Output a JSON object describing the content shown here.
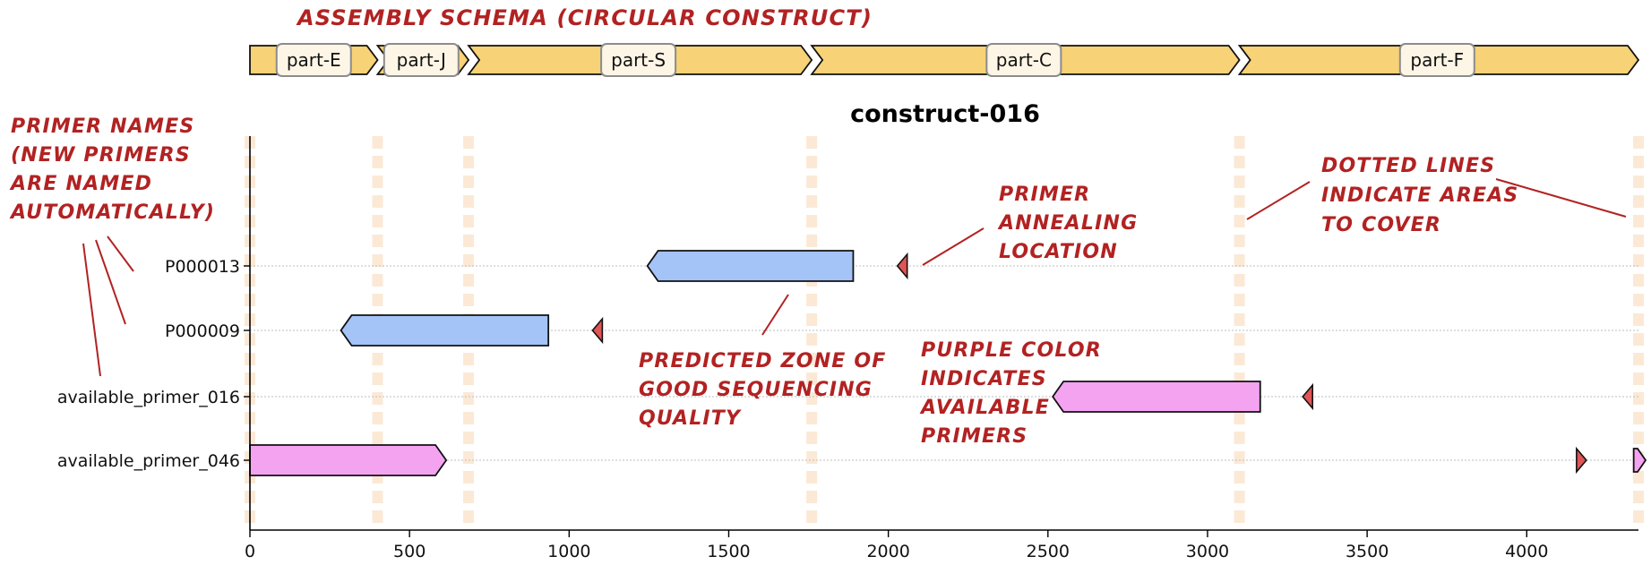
{
  "schema_title": "ASSEMBLY SCHEMA (CIRCULAR CONSTRUCT)",
  "colors": {
    "part_fill": "#f7d276",
    "zone_fill": "#a4c3f7",
    "available_fill": "#f4a3f1",
    "annealing_fill": "#e05555",
    "annotation": "#b22222",
    "coverage_line": "#fbe9d6"
  },
  "parts": [
    {
      "name": "part-E",
      "start": 0,
      "end": 400
    },
    {
      "name": "part-J",
      "start": 400,
      "end": 685
    },
    {
      "name": "part-S",
      "start": 685,
      "end": 1760
    },
    {
      "name": "part-C",
      "start": 1760,
      "end": 3100
    },
    {
      "name": "part-F",
      "start": 3100,
      "end": 4350
    }
  ],
  "chart_data": {
    "type": "bar",
    "title": "construct-016",
    "xlim": [
      0,
      4350
    ],
    "x_ticks": [
      0,
      500,
      1000,
      1500,
      2000,
      2500,
      3000,
      3500,
      4000
    ],
    "categories": [
      "P000013",
      "P000009",
      "available_primer_016",
      "available_primer_046"
    ],
    "coverage_boundaries": [
      0,
      400,
      685,
      1760,
      3100,
      4350
    ],
    "primers": [
      {
        "name": "P000013",
        "annealing": 2045,
        "direction": "reverse",
        "zone": [
          1245,
          1890
        ],
        "kind": "new"
      },
      {
        "name": "P000009",
        "annealing": 1090,
        "direction": "reverse",
        "zone": [
          285,
          935
        ],
        "kind": "new"
      },
      {
        "name": "available_primer_016",
        "annealing": 3315,
        "direction": "reverse",
        "zone": [
          2515,
          3165
        ],
        "kind": "available"
      },
      {
        "name": "available_primer_046",
        "annealing": 4170,
        "direction": "forward",
        "zone": [
          0,
          615
        ],
        "zone_wrap": [
          4335,
          4350
        ],
        "kind": "available"
      }
    ],
    "grid": false
  },
  "annotations": {
    "primer_names": [
      "PRIMER NAMES",
      "(NEW PRIMERS",
      "ARE NAMED",
      "AUTOMATICALLY)"
    ],
    "annealing": [
      "PRIMER",
      "ANNEALING",
      "LOCATION"
    ],
    "dotted": [
      "DOTTED LINES",
      "INDICATE AREAS",
      "TO COVER"
    ],
    "zone": [
      "PREDICTED ZONE OF",
      "GOOD SEQUENCING",
      "QUALITY"
    ],
    "purple": [
      "PURPLE COLOR",
      "INDICATES",
      "AVAILABLE",
      "PRIMERS"
    ]
  }
}
